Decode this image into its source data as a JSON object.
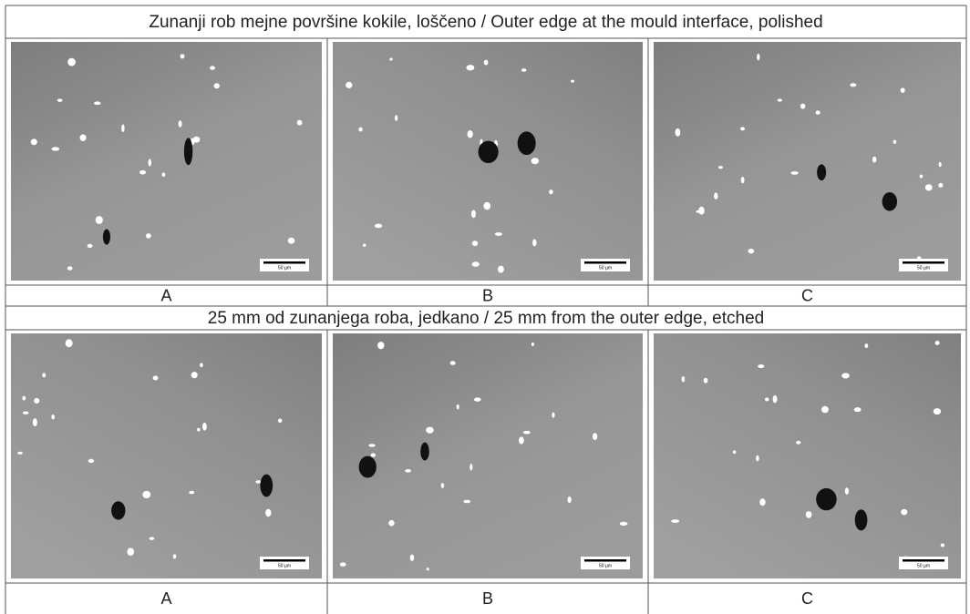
{
  "sections": [
    {
      "title": "Zunanji rob mejne površine kokile, loščeno / Outer edge at the mould interface, polished",
      "panels": [
        {
          "label": "A",
          "scale_bar": "50 µm"
        },
        {
          "label": "B",
          "scale_bar": "50 µm"
        },
        {
          "label": "C",
          "scale_bar": "50 µm"
        }
      ]
    },
    {
      "title": "25 mm od zunanjega roba, jedkano / 25 mm from the outer edge, etched",
      "panels": [
        {
          "label": "A",
          "scale_bar": "50 µm"
        },
        {
          "label": "B",
          "scale_bar": "50 µm"
        },
        {
          "label": "C",
          "scale_bar": "50 µm"
        }
      ]
    }
  ]
}
